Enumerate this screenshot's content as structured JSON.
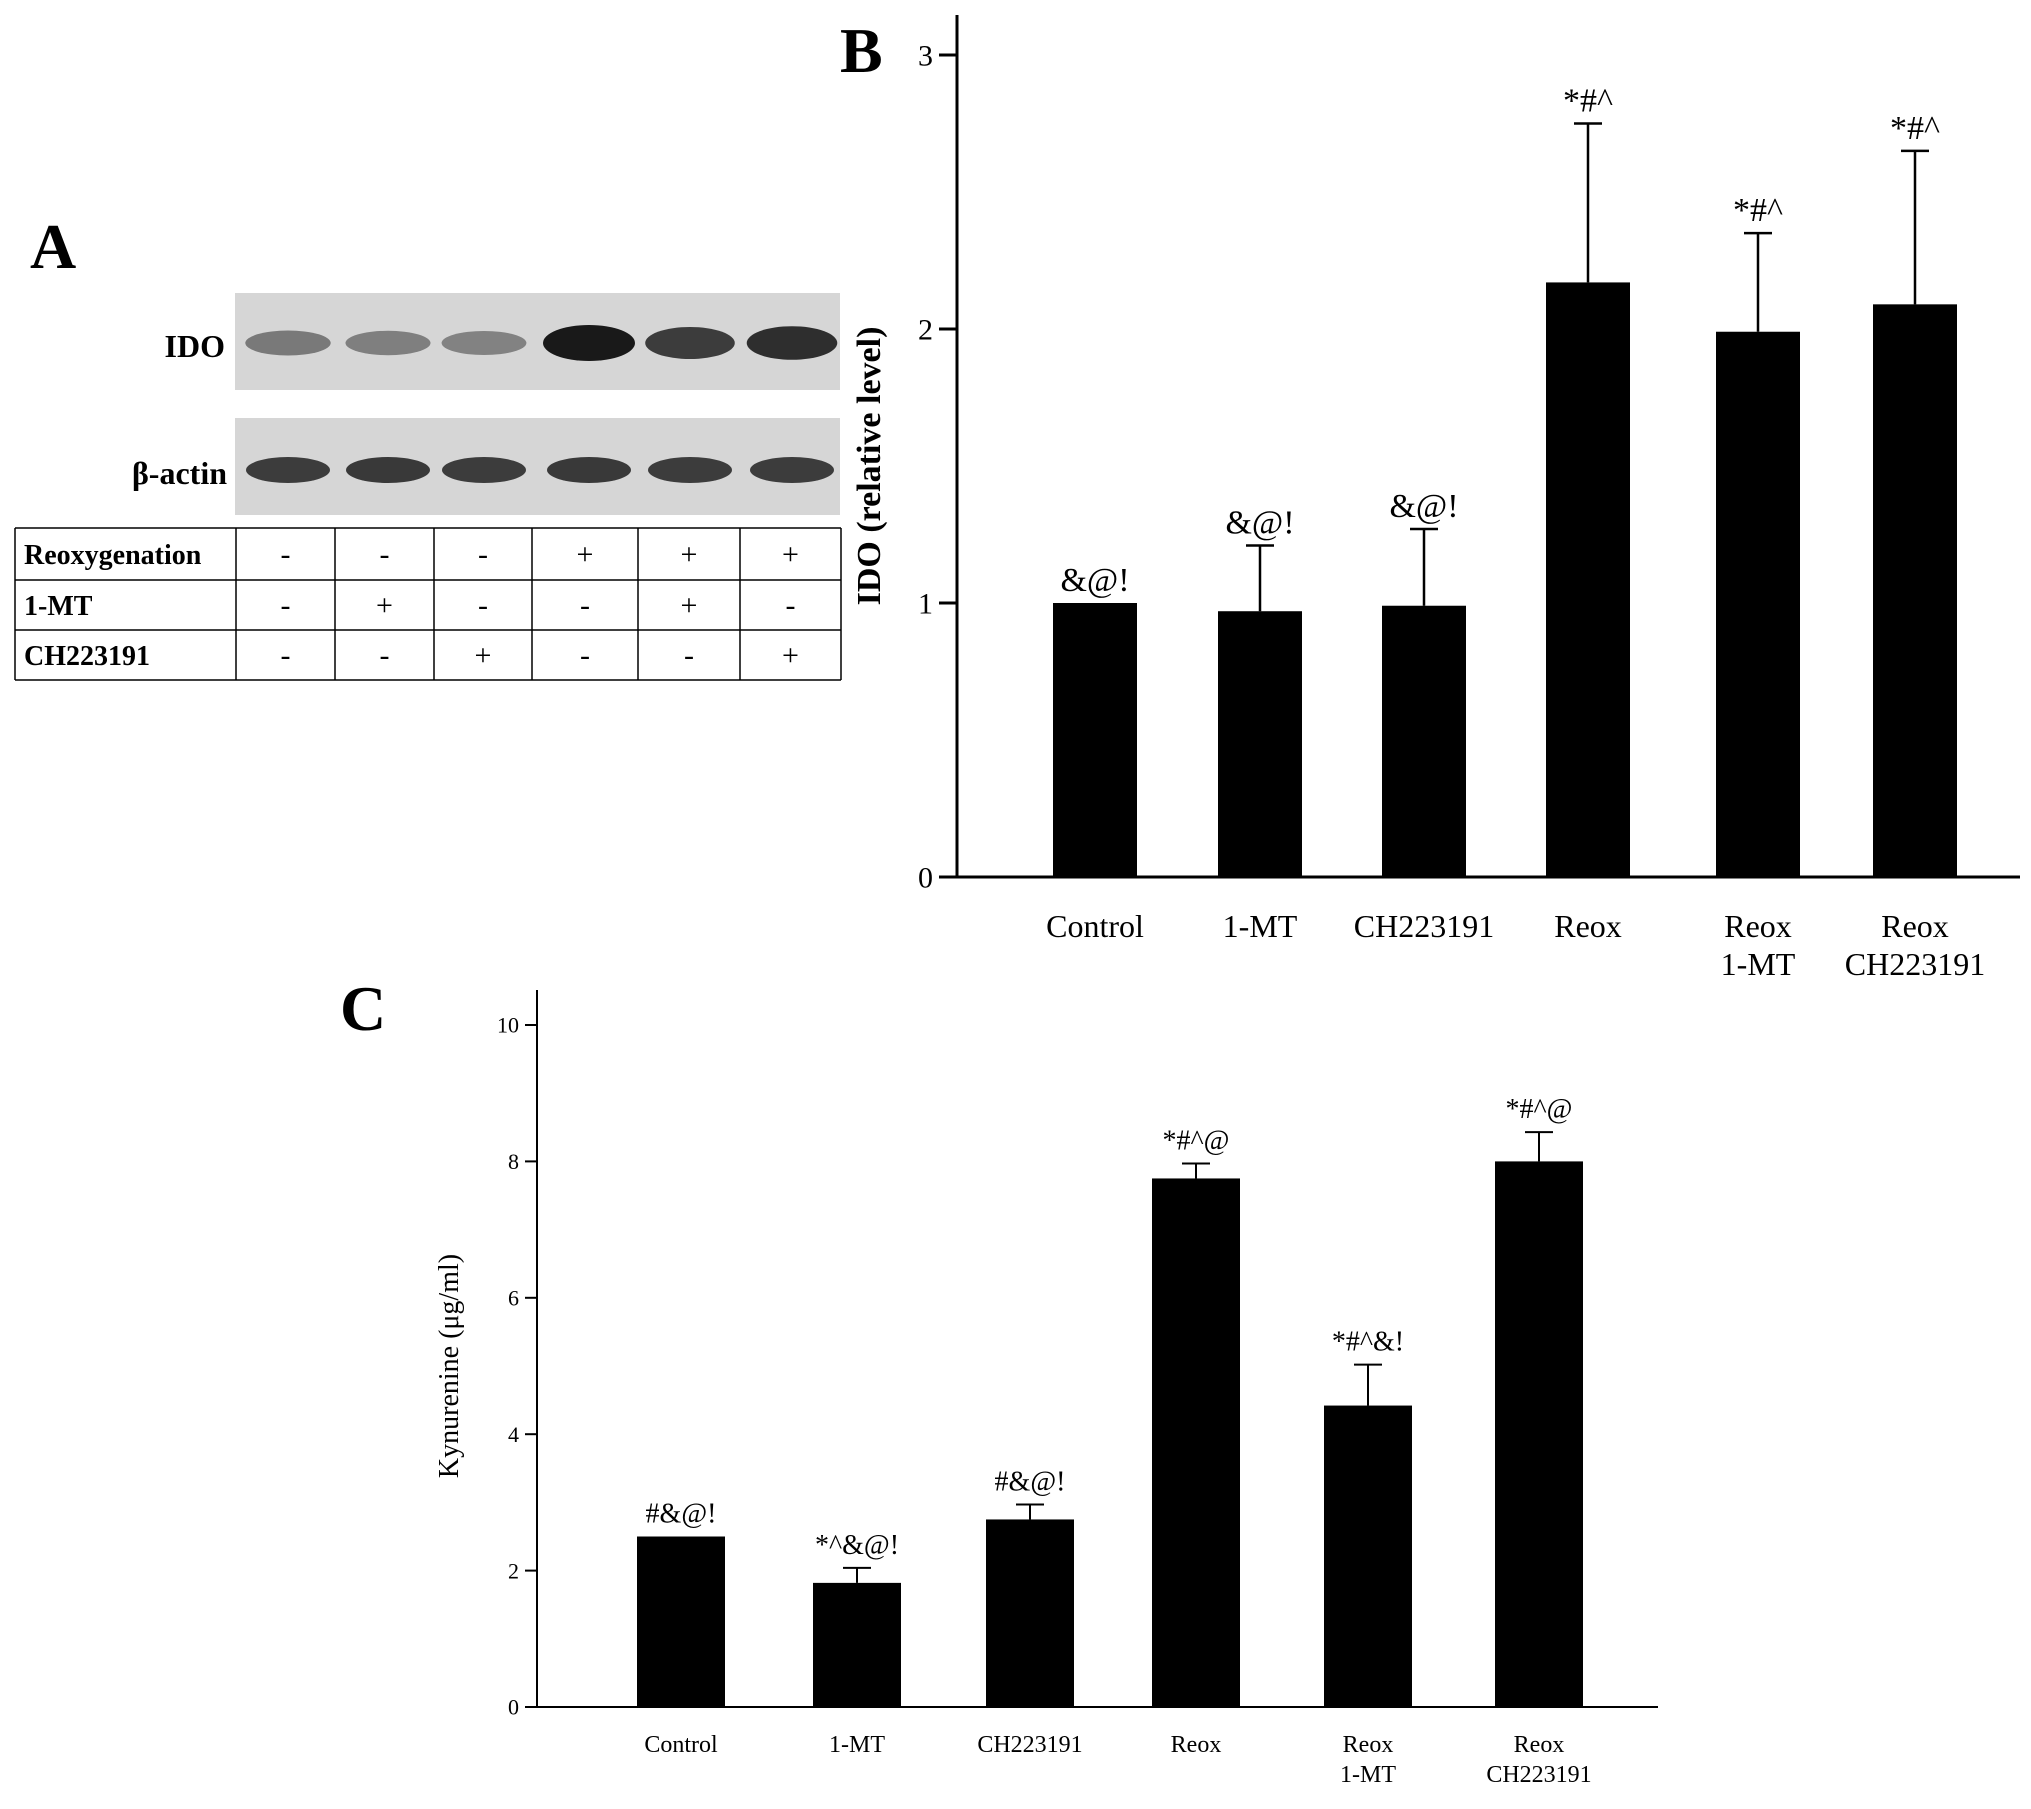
{
  "panel_a": {
    "letter": "A",
    "blot_labels": [
      "IDO",
      "β-actin"
    ],
    "ido_intensity": [
      0.45,
      0.42,
      0.4,
      1.0,
      0.8,
      0.88
    ],
    "actin_intensity": [
      0.8,
      0.82,
      0.8,
      0.82,
      0.8,
      0.8
    ],
    "table": [
      {
        "label": "Reoxygenation",
        "signs": [
          "-",
          "-",
          "-",
          "+",
          "+",
          "+"
        ]
      },
      {
        "label": "1-MT",
        "signs": [
          "-",
          "+",
          "-",
          "-",
          "+",
          "-"
        ]
      },
      {
        "label": "CH223191",
        "signs": [
          "-",
          "-",
          "+",
          "-",
          "-",
          "+"
        ]
      }
    ]
  },
  "panel_b": {
    "letter": "B"
  },
  "panel_c": {
    "letter": "C"
  },
  "chart_data": [
    {
      "panel": "B",
      "type": "bar",
      "categories": [
        [
          "Control"
        ],
        [
          "1-MT"
        ],
        [
          "CH223191"
        ],
        [
          "Reox"
        ],
        [
          "Reox",
          "1-MT"
        ],
        [
          "Reox",
          "CH223191"
        ]
      ],
      "series": [
        {
          "values": [
            1.0,
            0.97,
            0.99,
            2.17,
            1.99,
            2.09
          ],
          "error_upper": [
            0.0,
            0.24,
            0.28,
            0.58,
            0.36,
            0.56
          ],
          "color": "#000000"
        }
      ],
      "annotations": [
        "&@!",
        "&@!",
        "&@!",
        "*#^",
        "*#^",
        "*#^"
      ],
      "title": "",
      "xlabel": "",
      "ylabel": "IDO (relative level)",
      "ylim": [
        0,
        3
      ],
      "yticks": [
        0,
        1,
        2,
        3
      ],
      "grid": false
    },
    {
      "panel": "C",
      "type": "bar",
      "categories": [
        [
          "Control"
        ],
        [
          "1-MT"
        ],
        [
          "CH223191"
        ],
        [
          "Reox"
        ],
        [
          "Reox",
          "1-MT"
        ],
        [
          "Reox",
          "CH223191"
        ]
      ],
      "series": [
        {
          "values": [
            2.5,
            1.82,
            2.75,
            7.75,
            4.42,
            8.0
          ],
          "error_upper": [
            0.0,
            0.22,
            0.22,
            0.22,
            0.6,
            0.43
          ],
          "color": "#000000"
        }
      ],
      "annotations": [
        "#&@!",
        "*^&@!",
        "#&@!",
        "*#^@",
        "*#^&!",
        "*#^@"
      ],
      "title": "",
      "xlabel": "",
      "ylabel": "Kynurenine (μg/ml)",
      "ylim": [
        0,
        10
      ],
      "yticks": [
        0,
        2,
        4,
        6,
        8,
        10
      ],
      "grid": false
    }
  ]
}
